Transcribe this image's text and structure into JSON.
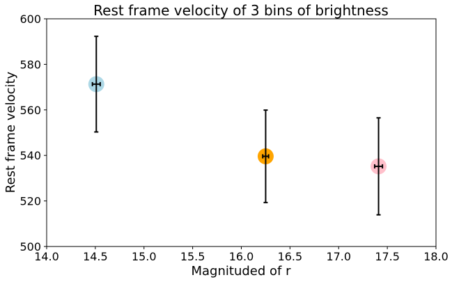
{
  "chart_data": {
    "type": "scatter",
    "title": "Rest frame velocity of 3 bins of brightness",
    "xlabel": "Magnituded of r",
    "ylabel": "Rest frame velocity",
    "xlim": [
      14.0,
      18.0
    ],
    "ylim": [
      500,
      600
    ],
    "xticks": [
      14.0,
      14.5,
      15.0,
      15.5,
      16.0,
      16.5,
      17.0,
      17.5,
      18.0
    ],
    "xtick_labels": [
      "14.0",
      "14.5",
      "15.0",
      "15.5",
      "16.0",
      "16.5",
      "17.0",
      "17.5",
      "18.0"
    ],
    "yticks": [
      500,
      520,
      540,
      560,
      580,
      600
    ],
    "ytick_labels": [
      "500",
      "520",
      "540",
      "560",
      "580",
      "600"
    ],
    "grid": false,
    "points": [
      {
        "x": 14.51,
        "y": 571.3,
        "yerr": 21.0,
        "xerr": 0.04,
        "color": "#add8e6"
      },
      {
        "x": 16.25,
        "y": 539.6,
        "yerr": 20.3,
        "xerr": 0.03,
        "color": "#ffa500"
      },
      {
        "x": 17.41,
        "y": 535.2,
        "yerr": 21.3,
        "xerr": 0.04,
        "color": "#ffc0cb"
      }
    ]
  }
}
